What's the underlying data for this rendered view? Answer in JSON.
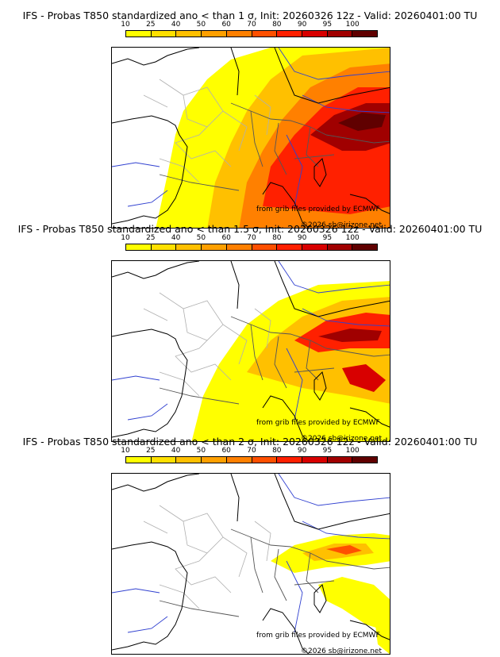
{
  "colorbar": {
    "labels": [
      "10",
      "25",
      "40",
      "50",
      "60",
      "70",
      "80",
      "90",
      "95",
      "100"
    ],
    "colors": [
      "#ffff00",
      "#ffe000",
      "#ffc000",
      "#ffa000",
      "#ff8000",
      "#ff5000",
      "#ff2000",
      "#d80000",
      "#a00000",
      "#600000"
    ]
  },
  "panels": [
    {
      "title": "IFS - Probas T850  standardized ano < than 1 σ, Init: 20260326 12z - Valid: 20260401:00 TU",
      "threshold": "1 σ",
      "extent": "large"
    },
    {
      "title": "IFS - Probas T850  standardized ano < than 1.5 σ, Init: 20260326 12z - Valid: 20260401:00 TU",
      "threshold": "1.5 σ",
      "extent": "medium"
    },
    {
      "title": "IFS - Probas T850  standardized ano < than 2 σ, Init: 20260326 12z - Valid: 20260401:00 TU",
      "threshold": "2 σ",
      "extent": "small"
    }
  ],
  "credits": {
    "source": "from grib files provided by ECMWF",
    "copyright": "©2026 sb@irizone.net"
  }
}
